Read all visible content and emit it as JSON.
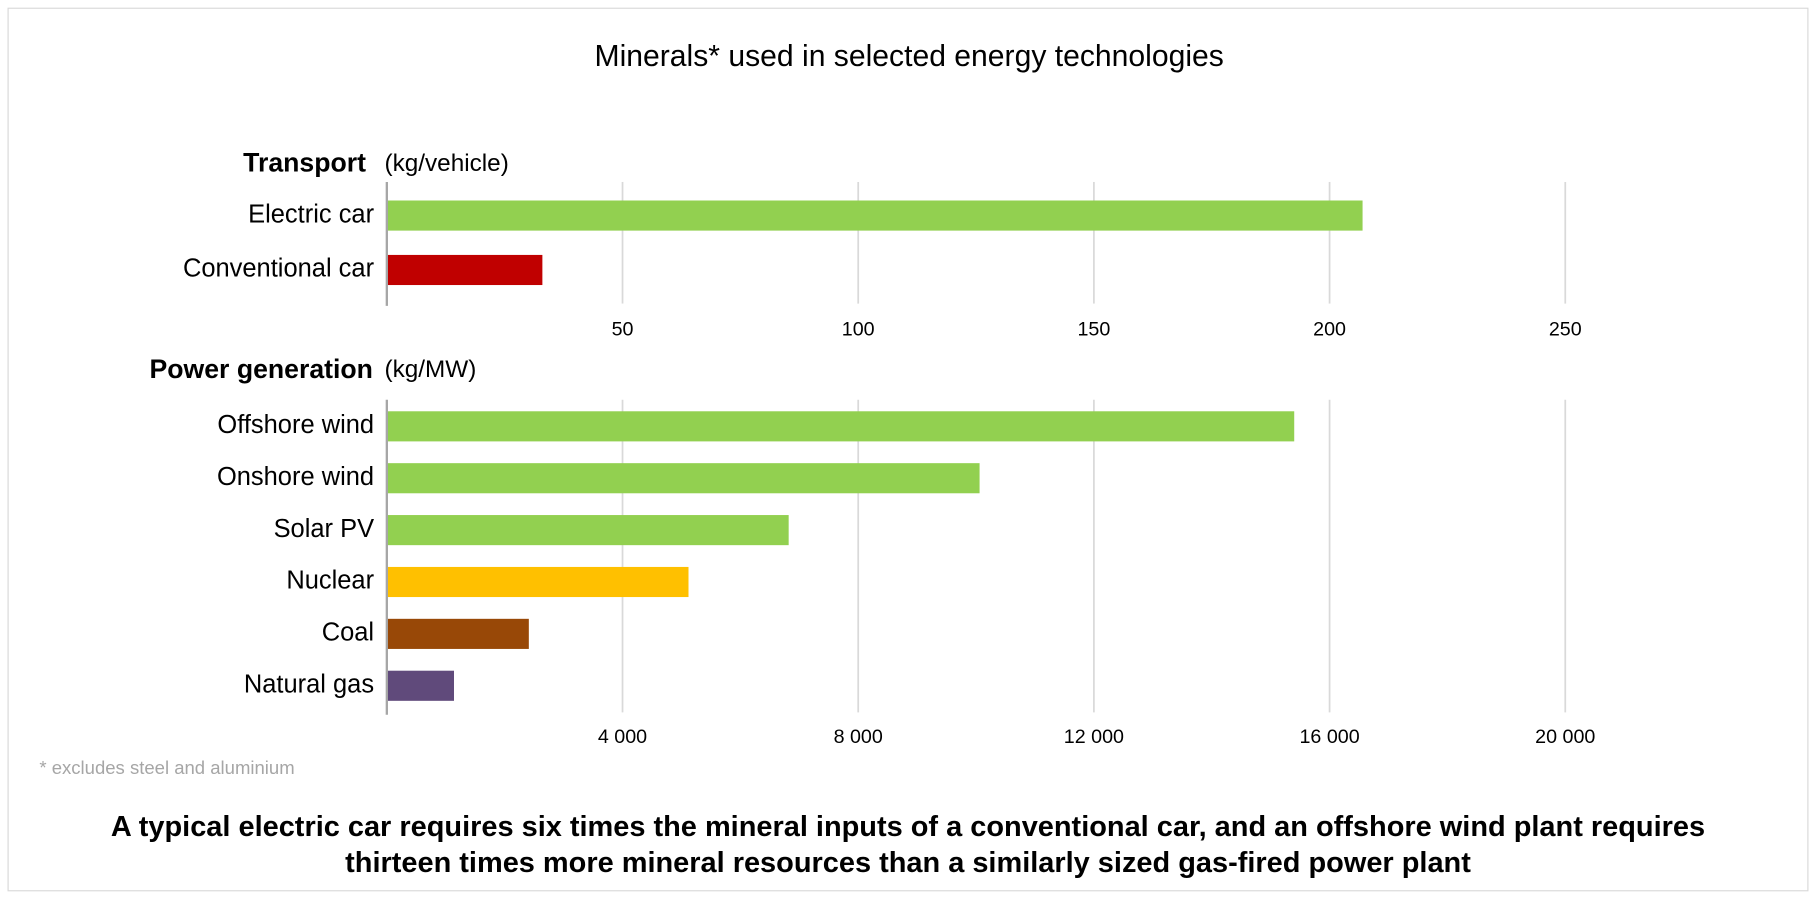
{
  "title": "Minerals* used in selected energy technologies",
  "footnote": "* excludes steel and aluminium",
  "caption": [
    "A typical electric car requires six times the mineral inputs of a conventional car, and an offshore wind plant requires",
    "thirteen times more mineral resources than a similarly sized gas-fired power plant"
  ],
  "chart_data": [
    {
      "type": "bar",
      "orientation": "horizontal",
      "group_title": "Transport",
      "unit": "(kg/vehicle)",
      "categories": [
        "Electric car",
        "Conventional car"
      ],
      "values": [
        207,
        33
      ],
      "colors": [
        "#92d050",
        "#c00000"
      ],
      "xlim": [
        0,
        300
      ],
      "xticks": [
        50,
        100,
        150,
        200,
        250
      ],
      "grid": true
    },
    {
      "type": "bar",
      "orientation": "horizontal",
      "group_title": "Power generation",
      "unit": "(kg/MW)",
      "categories": [
        "Offshore wind",
        "Onshore wind",
        "Solar PV",
        "Nuclear",
        "Coal",
        "Natural gas"
      ],
      "values": [
        15400,
        10060,
        6820,
        5120,
        2410,
        1140
      ],
      "colors": [
        "#92d050",
        "#92d050",
        "#92d050",
        "#ffc000",
        "#984807",
        "#604a7b"
      ],
      "xlim": [
        0,
        24000
      ],
      "xticks": [
        {
          "value": 4000,
          "label": "4 000"
        },
        {
          "value": 8000,
          "label": "8 000"
        },
        {
          "value": 12000,
          "label": "12 000"
        },
        {
          "value": 16000,
          "label": "16 000"
        },
        {
          "value": 20000,
          "label": "20 000"
        }
      ],
      "grid": true
    }
  ]
}
